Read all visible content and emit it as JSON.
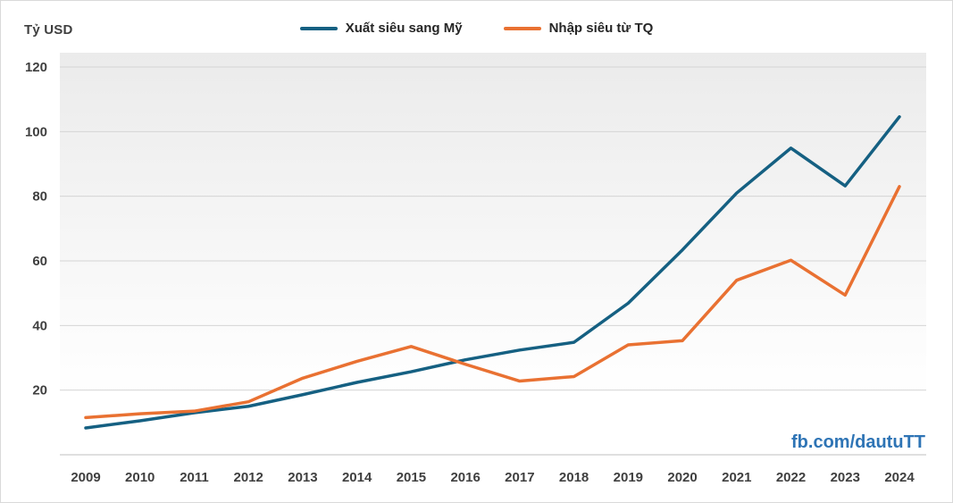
{
  "chart": {
    "y_axis_title": "Tỷ USD",
    "watermark": "fb.com/dautuTT",
    "colors": {
      "series1": "#156082",
      "series2": "#e97132",
      "gridline": "#d4d4d4",
      "axis_line": "#bfbfbf",
      "label": "#3f3f3f",
      "watermark": "#2e74b5",
      "plot_bg_top": "#ebebeb",
      "plot_bg_bottom": "#ffffff"
    }
  },
  "chart_data": {
    "type": "line",
    "title": "",
    "xlabel": "",
    "ylabel": "Tỷ USD",
    "categories": [
      "2009",
      "2010",
      "2011",
      "2012",
      "2013",
      "2014",
      "2015",
      "2016",
      "2017",
      "2018",
      "2019",
      "2020",
      "2021",
      "2022",
      "2023",
      "2024"
    ],
    "series": [
      {
        "name": "Xuất siêu sang Mỹ",
        "color": "#156082",
        "values": [
          8.3,
          10.5,
          13.0,
          15.0,
          18.6,
          22.4,
          25.7,
          29.4,
          32.4,
          34.8,
          46.9,
          63.4,
          81.0,
          94.9,
          83.2,
          104.6
        ]
      },
      {
        "name": "Nhập siêu từ TQ",
        "color": "#e97132",
        "values": [
          11.5,
          12.7,
          13.5,
          16.4,
          23.7,
          28.9,
          33.5,
          28.0,
          22.8,
          24.2,
          34.0,
          35.3,
          54.0,
          60.2,
          49.4,
          83.0
        ]
      }
    ],
    "ylim": [
      0,
      120
    ],
    "yticks": [
      20,
      40,
      60,
      80,
      100,
      120
    ],
    "grid": true,
    "legend_position": "top-center"
  }
}
